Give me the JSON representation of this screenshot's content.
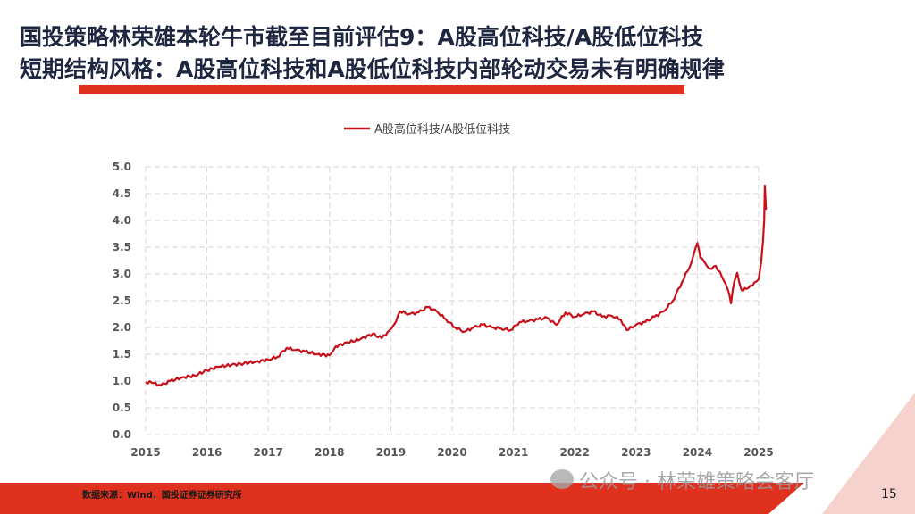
{
  "slide": {
    "title_line1": "国投策略林荣雄本轮牛市截至目前评估9：A股高位科技/A股低位科技",
    "title_line2": "短期结构风格：A股高位科技和A股低位科技内部轮动交易未有明确规律",
    "source": "数据来源：Wind，国投证券证券研究所",
    "watermark": "公众号 · 林荣雄策略会客厅",
    "page_number": "15",
    "accent_color": "#e0301e"
  },
  "chart_data": {
    "type": "line",
    "title": "",
    "xlabel": "",
    "ylabel": "",
    "xlim": [
      2015,
      2025
    ],
    "ylim": [
      0,
      5
    ],
    "x_ticks": [
      "2015",
      "2016",
      "2017",
      "2018",
      "2019",
      "2020",
      "2021",
      "2022",
      "2023",
      "2024",
      "2025"
    ],
    "y_ticks": [
      "0.0",
      "0.5",
      "1.0",
      "1.5",
      "2.0",
      "2.5",
      "3.0",
      "3.5",
      "4.0",
      "4.5",
      "5.0"
    ],
    "grid": true,
    "legend_position": "top-center",
    "series": [
      {
        "name": "A股高位科技/A股低位科技",
        "color": "#c8101a",
        "x": [
          2015.0,
          2015.1,
          2015.25,
          2015.4,
          2015.6,
          2015.8,
          2016.0,
          2016.2,
          2016.4,
          2016.6,
          2016.8,
          2017.0,
          2017.15,
          2017.3,
          2017.45,
          2017.6,
          2017.8,
          2018.0,
          2018.1,
          2018.3,
          2018.5,
          2018.7,
          2018.85,
          2018.95,
          2019.05,
          2019.15,
          2019.3,
          2019.45,
          2019.6,
          2019.75,
          2019.9,
          2020.05,
          2020.2,
          2020.35,
          2020.5,
          2020.65,
          2020.8,
          2020.95,
          2021.1,
          2021.25,
          2021.4,
          2021.55,
          2021.7,
          2021.85,
          2022.0,
          2022.15,
          2022.3,
          2022.45,
          2022.6,
          2022.75,
          2022.85,
          2023.0,
          2023.15,
          2023.3,
          2023.45,
          2023.6,
          2023.75,
          2023.9,
          2024.0,
          2024.05,
          2024.1,
          2024.2,
          2024.3,
          2024.4,
          2024.5,
          2024.55,
          2024.6,
          2024.65,
          2024.72,
          2024.8,
          2024.9,
          2025.0,
          2025.04,
          2025.07,
          2025.09,
          2025.1,
          2025.12
        ],
        "y": [
          0.98,
          0.97,
          0.92,
          1.0,
          1.07,
          1.1,
          1.2,
          1.27,
          1.3,
          1.33,
          1.36,
          1.4,
          1.45,
          1.62,
          1.58,
          1.55,
          1.5,
          1.48,
          1.65,
          1.72,
          1.78,
          1.88,
          1.8,
          1.92,
          2.05,
          2.3,
          2.25,
          2.28,
          2.38,
          2.3,
          2.15,
          2.0,
          1.92,
          2.0,
          2.05,
          2.0,
          1.98,
          1.95,
          2.1,
          2.12,
          2.15,
          2.18,
          2.05,
          2.28,
          2.2,
          2.25,
          2.3,
          2.2,
          2.22,
          2.15,
          1.95,
          2.05,
          2.1,
          2.2,
          2.3,
          2.5,
          2.85,
          3.2,
          3.58,
          3.3,
          3.25,
          3.1,
          3.15,
          2.95,
          2.7,
          2.45,
          2.85,
          3.02,
          2.7,
          2.72,
          2.78,
          2.9,
          3.2,
          3.6,
          4.0,
          4.65,
          4.2
        ]
      }
    ]
  }
}
